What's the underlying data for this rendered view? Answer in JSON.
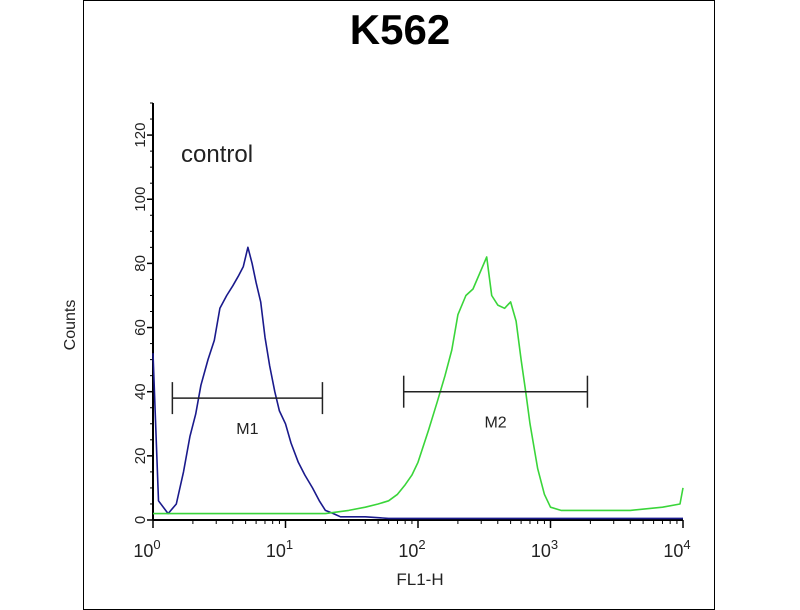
{
  "chart_data": {
    "type": "line",
    "title": "K562",
    "xlabel": "FL1-H",
    "ylabel": "Counts",
    "x_scale": "log",
    "xlim": [
      1,
      10000
    ],
    "ylim": [
      0,
      130
    ],
    "x_ticks": [
      {
        "value": 1,
        "base": "10",
        "exp": "0"
      },
      {
        "value": 10,
        "base": "10",
        "exp": "1"
      },
      {
        "value": 100,
        "base": "10",
        "exp": "2"
      },
      {
        "value": 1000,
        "base": "10",
        "exp": "3"
      },
      {
        "value": 10000,
        "base": "10",
        "exp": "4"
      }
    ],
    "y_ticks": [
      0,
      20,
      40,
      60,
      80,
      100,
      120
    ],
    "annotation": "control",
    "markers": [
      {
        "label": "M1",
        "range": [
          1.4,
          19
        ],
        "y": 38
      },
      {
        "label": "M2",
        "range": [
          78,
          1900
        ],
        "y": 40
      }
    ],
    "series": [
      {
        "color": "#1a1a8c",
        "x": [
          1.0,
          1.1,
          1.3,
          1.5,
          1.7,
          1.9,
          2.1,
          2.3,
          2.6,
          2.9,
          3.2,
          3.6,
          4.0,
          4.4,
          4.8,
          5.2,
          5.6,
          6.0,
          6.5,
          7.0,
          7.6,
          8.3,
          9.0,
          10,
          11,
          12.5,
          14,
          16,
          18,
          20,
          23,
          26,
          30,
          40,
          60,
          100,
          200,
          500,
          1000,
          3000,
          10000
        ],
        "values": [
          52,
          6,
          2,
          5,
          15,
          26,
          33,
          42,
          50,
          56,
          66,
          70,
          73,
          76,
          79,
          85,
          80,
          74,
          68,
          57,
          48,
          40,
          34,
          30,
          24,
          18,
          14,
          10,
          6,
          3,
          2,
          1,
          1,
          1,
          0.5,
          0.5,
          0.5,
          0.5,
          0.5,
          0.5,
          0.5
        ]
      },
      {
        "color": "#3ad53a",
        "x": [
          1,
          2,
          5,
          10,
          20,
          30,
          40,
          50,
          60,
          70,
          80,
          90,
          100,
          120,
          140,
          160,
          180,
          200,
          230,
          260,
          300,
          330,
          360,
          400,
          450,
          500,
          550,
          600,
          650,
          700,
          800,
          900,
          1000,
          1200,
          1500,
          2000,
          4000,
          7000,
          9500,
          10000
        ],
        "values": [
          2,
          2,
          2,
          2,
          2,
          3,
          4,
          5,
          6,
          8,
          11,
          14,
          18,
          28,
          37,
          45,
          53,
          64,
          70,
          72,
          78,
          82,
          70,
          67,
          66,
          68,
          62,
          50,
          40,
          30,
          16,
          8,
          4,
          3,
          3,
          3,
          3,
          4,
          5,
          10
        ]
      }
    ]
  }
}
